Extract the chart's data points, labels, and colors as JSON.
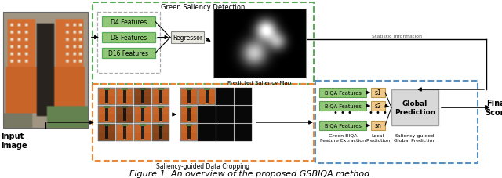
{
  "fig_width": 6.4,
  "fig_height": 2.28,
  "dpi": 100,
  "background": "#ffffff",
  "caption": "Figure 1: An overview of the proposed GSBIQA method.",
  "input_label": "Input\nImage",
  "final_score_label": "Final\nScore",
  "green_box_title": "Green Saliency Detection",
  "green_box_color": "#5aaa5a",
  "orange_box_color": "#e8883a",
  "blue_box_color": "#5a90c0",
  "feature_boxes": [
    "D4 Features",
    "D8 Features",
    "D16 Features"
  ],
  "feature_box_fill": "#90c878",
  "feature_box_border": "#5aaa5a",
  "regressor_label": "Regressor",
  "saliency_map_label": "Predicted Saliency Map",
  "saliency_crop_label": "Saliency-guided Data Cropping",
  "biqa_label": "BIQA Features",
  "biqa_fill": "#90c878",
  "biqa_border": "#60a050",
  "s_labels": [
    "s1",
    "s2",
    "sn"
  ],
  "s_fill": "#f0c888",
  "s_border": "#c09848",
  "global_pred_label": "Global\nPrediction",
  "global_pred_fill": "#d8d8d8",
  "global_pred_border": "#a0a0a0",
  "local_pred_label": "Local\nPrediction",
  "green_biqa_label": "Green BIQA\nFeature Extraction",
  "saliency_guided_label": "Saliency-guided\nGlobal Prediction",
  "statistic_info_label": "Statistic Information",
  "dots": "• • •",
  "inner_dash_color": "#aaaaaa",
  "arrow_color": "#111111"
}
